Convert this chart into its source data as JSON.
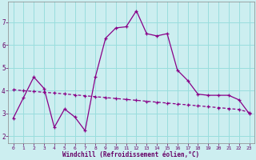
{
  "xlabel": "Windchill (Refroidissement éolien,°C)",
  "bg_color": "#cceef0",
  "grid_color": "#99dddd",
  "line_color": "#880088",
  "x_ticks": [
    0,
    1,
    2,
    3,
    4,
    5,
    6,
    7,
    8,
    9,
    10,
    11,
    12,
    13,
    14,
    15,
    16,
    17,
    18,
    19,
    20,
    21,
    22,
    23
  ],
  "y_ticks": [
    2,
    3,
    4,
    5,
    6,
    7
  ],
  "ylim": [
    1.7,
    7.9
  ],
  "xlim": [
    -0.5,
    23.5
  ],
  "line1_x": [
    0,
    1,
    2,
    3,
    4,
    5,
    6,
    7,
    8,
    9,
    10,
    11,
    12,
    13,
    14,
    15,
    16,
    17,
    18,
    19,
    20,
    21,
    22,
    23
  ],
  "line1_y": [
    2.8,
    3.7,
    4.6,
    4.1,
    2.4,
    3.2,
    2.85,
    2.25,
    4.6,
    6.3,
    6.75,
    6.8,
    7.5,
    6.5,
    6.4,
    6.5,
    4.9,
    4.45,
    3.85,
    3.8,
    3.8,
    3.8,
    3.6,
    3.0
  ],
  "line2_x": [
    0,
    1,
    2,
    3,
    4,
    5,
    6,
    7,
    8,
    9,
    10,
    11,
    12,
    13,
    14,
    15,
    16,
    17,
    18,
    19,
    20,
    21,
    22,
    23
  ],
  "line2_y": [
    4.05,
    4.0,
    3.97,
    3.93,
    3.9,
    3.86,
    3.82,
    3.78,
    3.74,
    3.7,
    3.66,
    3.62,
    3.58,
    3.54,
    3.5,
    3.46,
    3.42,
    3.38,
    3.34,
    3.3,
    3.26,
    3.22,
    3.18,
    3.05
  ]
}
